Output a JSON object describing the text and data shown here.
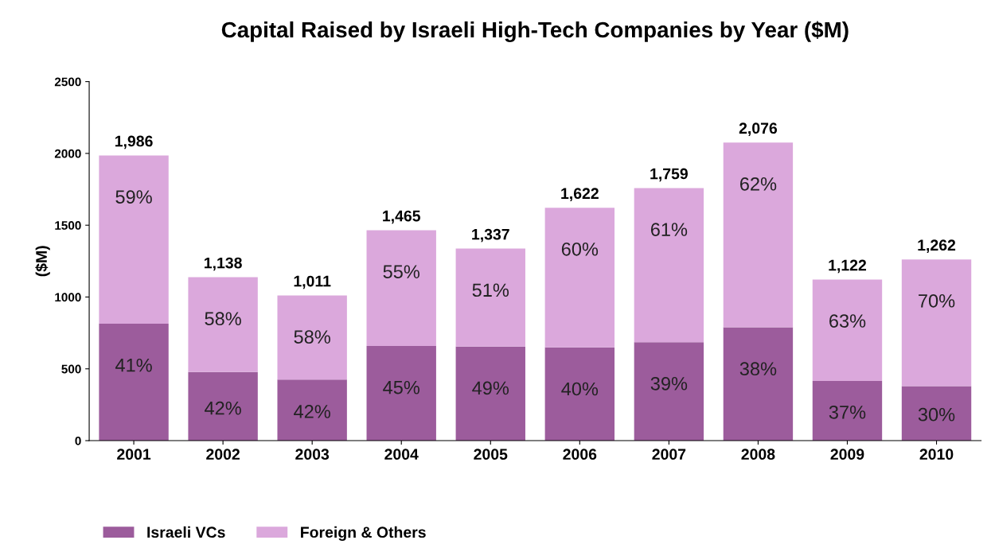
{
  "chart_data": {
    "type": "bar",
    "title": "Capital Raised by Israeli High-Tech Companies by Year ($M)",
    "ylabel": "($M)",
    "categories": [
      "2001",
      "2002",
      "2003",
      "2004",
      "2005",
      "2006",
      "2007",
      "2008",
      "2009",
      "2010"
    ],
    "stacked": true,
    "series": [
      {
        "name": "Israeli VCs",
        "color": "#9c5c9c",
        "values": [
          814,
          478,
          425,
          659,
          655,
          649,
          686,
          789,
          415,
          379
        ]
      },
      {
        "name": "Foreign & Others",
        "color": "#dba8dc",
        "values": [
          1172,
          660,
          586,
          806,
          682,
          973,
          1073,
          1287,
          707,
          883
        ]
      }
    ],
    "annotations": [
      {
        "text": "41%",
        "x": "2001",
        "y": 814
      },
      {
        "text": "42%",
        "x": "2002",
        "y": 478
      },
      {
        "text": "42%",
        "x": "2003",
        "y": 425
      },
      {
        "text": "45%",
        "x": "2004",
        "y": 659
      },
      {
        "text": "49%",
        "x": "2005",
        "y": 655
      },
      {
        "text": "40%",
        "x": "2006",
        "y": 649
      },
      {
        "text": "39%",
        "x": "2007",
        "y": 686
      },
      {
        "text": "38%",
        "x": "2008",
        "y": 789
      },
      {
        "text": "37%",
        "x": "2009",
        "y": 415
      },
      {
        "text": "30%",
        "x": "2010",
        "y": 379
      },
      {
        "text": "59%",
        "x": "2001",
        "y": 1986
      },
      {
        "text": "58%",
        "x": "2002",
        "y": 1138
      },
      {
        "text": "58%",
        "x": "2003",
        "y": 1011
      },
      {
        "text": "55%",
        "x": "2004",
        "y": 1465
      },
      {
        "text": "51%",
        "x": "2005",
        "y": 1337
      },
      {
        "text": "60%",
        "x": "2006",
        "y": 1622
      },
      {
        "text": "61%",
        "x": "2007",
        "y": 1759
      },
      {
        "text": "62%",
        "x": "2008",
        "y": 2076
      },
      {
        "text": "63%",
        "x": "2009",
        "y": 1122
      },
      {
        "text": "70%",
        "x": "2010",
        "y": 1262
      }
    ],
    "totals": [
      "1,986",
      "1,138",
      "1,011",
      "1,465",
      "1,337",
      "1,622",
      "1,759",
      "2,076",
      "1,122",
      "1,262"
    ],
    "ylim": [
      0,
      2500
    ],
    "yticks": [
      0,
      500,
      1000,
      1500,
      2000,
      2500
    ],
    "grid": false,
    "legend": "bottom left"
  }
}
